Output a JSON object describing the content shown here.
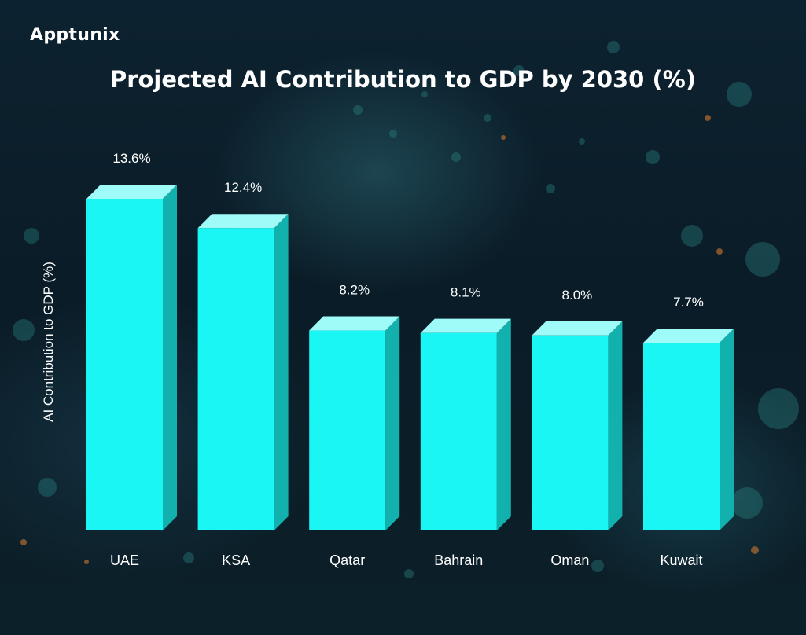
{
  "brand": {
    "name": "Apptunix"
  },
  "chart_data": {
    "type": "bar",
    "title": "Projected AI Contribution to GDP by 2030 (%)",
    "xlabel": "",
    "ylabel": "AI Contribution to GDP (%)",
    "categories": [
      "UAE",
      "KSA",
      "Qatar",
      "Bahrain",
      "Oman",
      "Kuwait"
    ],
    "values": [
      13.6,
      12.4,
      8.2,
      8.1,
      8.0,
      7.7
    ],
    "value_labels": [
      "13.6%",
      "12.4%",
      "8.2%",
      "8.1%",
      "8.0%",
      "7.7%"
    ],
    "ylim": [
      0,
      13.6
    ],
    "grid": false,
    "legend": "none",
    "bar_color": "#19f6f3",
    "bar_top_color": "#9ffbf8",
    "bar_side_color": "#12b1ae"
  }
}
